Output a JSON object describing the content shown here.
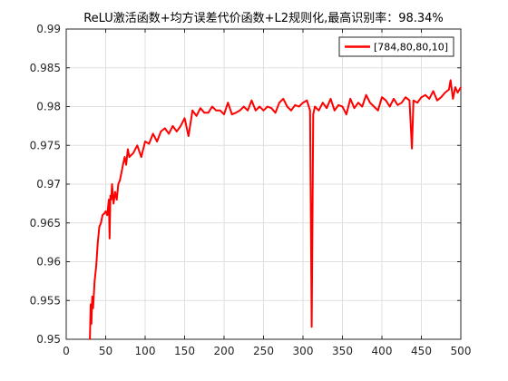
{
  "chart_data": {
    "type": "line",
    "title": "ReLU激活函数+均方误差代价函数+L2规则化,最高识别率：98.34%",
    "xlabel": "",
    "ylabel": "",
    "xlim": [
      0,
      500
    ],
    "ylim": [
      0.95,
      0.99
    ],
    "xticks": [
      0,
      50,
      100,
      150,
      200,
      250,
      300,
      350,
      400,
      450,
      500
    ],
    "xtick_labels": [
      "0",
      "50",
      "100",
      "150",
      "200",
      "250",
      "300",
      "350",
      "400",
      "450",
      "500"
    ],
    "yticks": [
      0.95,
      0.955,
      0.96,
      0.965,
      0.97,
      0.975,
      0.98,
      0.985,
      0.99
    ],
    "ytick_labels": [
      "0.95",
      "0.955",
      "0.96",
      "0.965",
      "0.97",
      "0.975",
      "0.98",
      "0.985",
      "0.99"
    ],
    "grid": true,
    "legend_position": "top-right",
    "series": [
      {
        "name": "[784,80,80,10]",
        "color": "#ff0000",
        "x": [
          30,
          31,
          32,
          33,
          34,
          36,
          38,
          40,
          42,
          44,
          46,
          48,
          50,
          52,
          54,
          55,
          56,
          57,
          58,
          60,
          62,
          64,
          66,
          68,
          70,
          72,
          74,
          76,
          78,
          80,
          85,
          90,
          95,
          100,
          105,
          110,
          115,
          120,
          125,
          130,
          135,
          140,
          145,
          150,
          155,
          160,
          165,
          170,
          175,
          180,
          185,
          190,
          195,
          200,
          205,
          210,
          215,
          220,
          225,
          230,
          235,
          240,
          245,
          250,
          255,
          260,
          265,
          270,
          275,
          280,
          285,
          290,
          295,
          300,
          305,
          309,
          311,
          313,
          315,
          320,
          325,
          330,
          335,
          340,
          345,
          350,
          355,
          360,
          365,
          370,
          375,
          380,
          385,
          390,
          395,
          400,
          405,
          410,
          415,
          420,
          425,
          430,
          435,
          438,
          440,
          445,
          450,
          455,
          460,
          465,
          470,
          475,
          480,
          485,
          487,
          490,
          493,
          496,
          500
        ],
        "values": [
          0.95,
          0.9545,
          0.952,
          0.9555,
          0.954,
          0.9575,
          0.9595,
          0.9625,
          0.9645,
          0.965,
          0.966,
          0.9662,
          0.9665,
          0.966,
          0.968,
          0.963,
          0.9685,
          0.968,
          0.97,
          0.9675,
          0.969,
          0.968,
          0.97,
          0.9705,
          0.9715,
          0.9725,
          0.9735,
          0.9725,
          0.9745,
          0.9735,
          0.974,
          0.975,
          0.9735,
          0.9755,
          0.9752,
          0.9765,
          0.9755,
          0.9768,
          0.9772,
          0.9765,
          0.9775,
          0.9768,
          0.9775,
          0.9785,
          0.9762,
          0.9795,
          0.9788,
          0.9798,
          0.9792,
          0.9792,
          0.98,
          0.9795,
          0.9795,
          0.979,
          0.9805,
          0.979,
          0.9792,
          0.9795,
          0.98,
          0.9795,
          0.9808,
          0.9795,
          0.98,
          0.9795,
          0.98,
          0.9798,
          0.9792,
          0.9805,
          0.981,
          0.98,
          0.9795,
          0.9802,
          0.98,
          0.9805,
          0.9808,
          0.9795,
          0.9516,
          0.979,
          0.98,
          0.9795,
          0.9805,
          0.9798,
          0.981,
          0.9795,
          0.9802,
          0.98,
          0.979,
          0.981,
          0.9798,
          0.9805,
          0.98,
          0.9815,
          0.9805,
          0.98,
          0.9795,
          0.9812,
          0.9808,
          0.98,
          0.981,
          0.9802,
          0.9805,
          0.9812,
          0.9808,
          0.9746,
          0.9808,
          0.9805,
          0.9812,
          0.9815,
          0.981,
          0.982,
          0.9808,
          0.9812,
          0.9818,
          0.9822,
          0.9834,
          0.981,
          0.9825,
          0.9818,
          0.9825
        ]
      }
    ]
  }
}
